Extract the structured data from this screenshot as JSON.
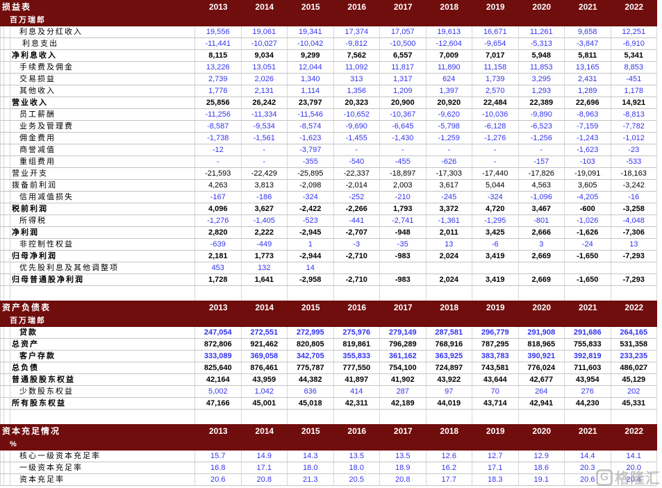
{
  "colors": {
    "header_bg": "#700d0d",
    "value_blue": "#3333ef"
  },
  "years": [
    "2013",
    "2014",
    "2015",
    "2016",
    "2017",
    "2018",
    "2019",
    "2020",
    "2021",
    "2022"
  ],
  "sections": [
    {
      "id": "income-statement",
      "title": "损益表",
      "subtitle": "百万瑞郎",
      "rows": [
        {
          "label": "利息及分红收入",
          "style": "detail-blue",
          "values": [
            "19,556",
            "19,061",
            "19,341",
            "17,374",
            "17,057",
            "19,613",
            "16,671",
            "11,261",
            "9,658",
            "12,251"
          ]
        },
        {
          "label": "利息支出",
          "style": "detail-blue-sp",
          "values": [
            "-11,441",
            "-10,027",
            "-10,042",
            "-9,812",
            "-10,500",
            "-12,604",
            "-9,654",
            "-5,313",
            "-3,847",
            "-6,910"
          ]
        },
        {
          "label": "净利息收入",
          "style": "bold-black",
          "values": [
            "8,115",
            "9,034",
            "9,299",
            "7,562",
            "6,557",
            "7,009",
            "7,017",
            "5,948",
            "5,811",
            "5,341"
          ]
        },
        {
          "label": "手续费及佣金",
          "style": "detail-blue",
          "values": [
            "13,226",
            "13,051",
            "12,044",
            "11,092",
            "11,817",
            "11,890",
            "11,158",
            "11,853",
            "13,165",
            "8,853"
          ]
        },
        {
          "label": "交易损益",
          "style": "detail-blue",
          "values": [
            "2,739",
            "2,026",
            "1,340",
            "313",
            "1,317",
            "624",
            "1,739",
            "3,295",
            "2,431",
            "-451"
          ]
        },
        {
          "label": "其他收入",
          "style": "detail-blue",
          "values": [
            "1,776",
            "2,131",
            "1,114",
            "1,356",
            "1,209",
            "1,397",
            "2,570",
            "1,293",
            "1,289",
            "1,178"
          ]
        },
        {
          "label": "营业收入",
          "style": "bold-black",
          "values": [
            "25,856",
            "26,242",
            "23,797",
            "20,323",
            "20,900",
            "20,920",
            "22,484",
            "22,389",
            "22,696",
            "14,921"
          ]
        },
        {
          "label": "员工薪酬",
          "style": "detail-blue",
          "values": [
            "-11,256",
            "-11,334",
            "-11,546",
            "-10,652",
            "-10,367",
            "-9,620",
            "-10,036",
            "-9,890",
            "-8,963",
            "-8,813"
          ]
        },
        {
          "label": "业务及管理费",
          "style": "detail-blue",
          "values": [
            "-8,587",
            "-9,534",
            "-8,574",
            "-9,690",
            "-6,645",
            "-5,798",
            "-6,128",
            "-6,523",
            "-7,159",
            "-7,782"
          ]
        },
        {
          "label": "佣金费用",
          "style": "detail-blue",
          "values": [
            "-1,738",
            "-1,561",
            "-1,623",
            "-1,455",
            "-1,430",
            "-1,259",
            "-1,276",
            "-1,256",
            "-1,243",
            "-1,012"
          ]
        },
        {
          "label": "商誉减值",
          "style": "detail-blue",
          "values": [
            "-12",
            "-",
            "-3,797",
            "-",
            "-",
            "-",
            "-",
            "-",
            "-1,623",
            "-23"
          ]
        },
        {
          "label": "重组费用",
          "style": "detail-blue",
          "values": [
            "-",
            "-",
            "-355",
            "-540",
            "-455",
            "-626",
            "-",
            "-157",
            "-103",
            "-533"
          ]
        },
        {
          "label": "营业开支",
          "style": "plain-black",
          "values": [
            "-21,593",
            "-22,429",
            "-25,895",
            "-22,337",
            "-18,897",
            "-17,303",
            "-17,440",
            "-17,826",
            "-19,091",
            "-18,163"
          ]
        },
        {
          "label": "拨备前利润",
          "style": "plain-black",
          "values": [
            "4,263",
            "3,813",
            "-2,098",
            "-2,014",
            "2,003",
            "3,617",
            "5,044",
            "4,563",
            "3,605",
            "-3,242"
          ]
        },
        {
          "label": "信用减值损失",
          "style": "detail-blue",
          "values": [
            "-167",
            "-186",
            "-324",
            "-252",
            "-210",
            "-245",
            "-324",
            "-1,096",
            "-4,205",
            "-16"
          ]
        },
        {
          "label": "税前利润",
          "style": "bold-black",
          "values": [
            "4,096",
            "3,627",
            "-2,422",
            "-2,266",
            "1,793",
            "3,372",
            "4,720",
            "3,467",
            "-600",
            "-3,258"
          ]
        },
        {
          "label": "所得税",
          "style": "detail-blue",
          "values": [
            "-1,276",
            "-1,405",
            "-523",
            "-441",
            "-2,741",
            "-1,361",
            "-1,295",
            "-801",
            "-1,026",
            "-4,048"
          ]
        },
        {
          "label": "净利润",
          "style": "bold-black",
          "values": [
            "2,820",
            "2,222",
            "-2,945",
            "-2,707",
            "-948",
            "2,011",
            "3,425",
            "2,666",
            "-1,626",
            "-7,306"
          ]
        },
        {
          "label": "非控制性权益",
          "style": "detail-blue",
          "values": [
            "-639",
            "-449",
            "1",
            "-3",
            "-35",
            "13",
            "-6",
            "3",
            "-24",
            "13"
          ]
        },
        {
          "label": "归母净利润",
          "style": "bold-black",
          "values": [
            "2,181",
            "1,773",
            "-2,944",
            "-2,710",
            "-983",
            "2,024",
            "3,419",
            "2,669",
            "-1,650",
            "-7,293"
          ]
        },
        {
          "label": "优先股利息及其他调整项",
          "style": "detail-blue",
          "values": [
            "453",
            "132",
            "14",
            "",
            "",
            "",
            "",
            "",
            "",
            ""
          ]
        },
        {
          "label": "归母普通股净利润",
          "style": "bold-black",
          "values": [
            "1,728",
            "1,641",
            "-2,958",
            "-2,710",
            "-983",
            "2,024",
            "3,419",
            "2,669",
            "-1,650",
            "-7,293"
          ]
        }
      ]
    },
    {
      "id": "balance-sheet",
      "title": "资产负债表",
      "subtitle": "百万瑞郎",
      "rows": [
        {
          "label": "贷款",
          "style": "bold-blue",
          "values": [
            "247,054",
            "272,551",
            "272,995",
            "275,976",
            "279,149",
            "287,581",
            "296,779",
            "291,908",
            "291,686",
            "264,165"
          ]
        },
        {
          "label": "总资产",
          "style": "bold-black",
          "values": [
            "872,806",
            "921,462",
            "820,805",
            "819,861",
            "796,289",
            "768,916",
            "787,295",
            "818,965",
            "755,833",
            "531,358"
          ]
        },
        {
          "label": "客户存款",
          "style": "bold-blue",
          "values": [
            "333,089",
            "369,058",
            "342,705",
            "355,833",
            "361,162",
            "363,925",
            "383,783",
            "390,921",
            "392,819",
            "233,235"
          ]
        },
        {
          "label": "总负债",
          "style": "bold-black",
          "values": [
            "825,640",
            "876,461",
            "775,787",
            "777,550",
            "754,100",
            "724,897",
            "743,581",
            "776,024",
            "711,603",
            "486,027"
          ]
        },
        {
          "label": "普通股股东权益",
          "style": "bold-black",
          "values": [
            "42,164",
            "43,959",
            "44,382",
            "41,897",
            "41,902",
            "43,922",
            "43,644",
            "42,677",
            "43,954",
            "45,129"
          ]
        },
        {
          "label": "少数股东权益",
          "style": "detail-blue",
          "values": [
            "5,002",
            "1,042",
            "636",
            "414",
            "287",
            "97",
            "70",
            "264",
            "276",
            "202"
          ]
        },
        {
          "label": "所有股东权益",
          "style": "bold-black",
          "values": [
            "47,166",
            "45,001",
            "45,018",
            "42,311",
            "42,189",
            "44,019",
            "43,714",
            "42,941",
            "44,230",
            "45,331"
          ]
        }
      ]
    },
    {
      "id": "capital-adequacy",
      "title": "资本充足情况",
      "subtitle": "%",
      "rows": [
        {
          "label": "核心一级资本充足率",
          "style": "detail-blue",
          "values": [
            "15.7",
            "14.9",
            "14.3",
            "13.5",
            "13.5",
            "12.6",
            "12.7",
            "12.9",
            "14.4",
            "14.1"
          ]
        },
        {
          "label": "一级资本充足率",
          "style": "detail-blue",
          "values": [
            "16.8",
            "17.1",
            "18.0",
            "18.0",
            "18.9",
            "16.2",
            "17.1",
            "18.6",
            "20.3",
            "20.0"
          ]
        },
        {
          "label": "资本充足率",
          "style": "detail-blue",
          "values": [
            "20.6",
            "20.8",
            "21.3",
            "20.5",
            "20.8",
            "17.7",
            "18.3",
            "19.1",
            "20.6",
            "20.4"
          ]
        }
      ]
    }
  ],
  "watermark": {
    "logo": "G",
    "text": "格隆汇"
  }
}
